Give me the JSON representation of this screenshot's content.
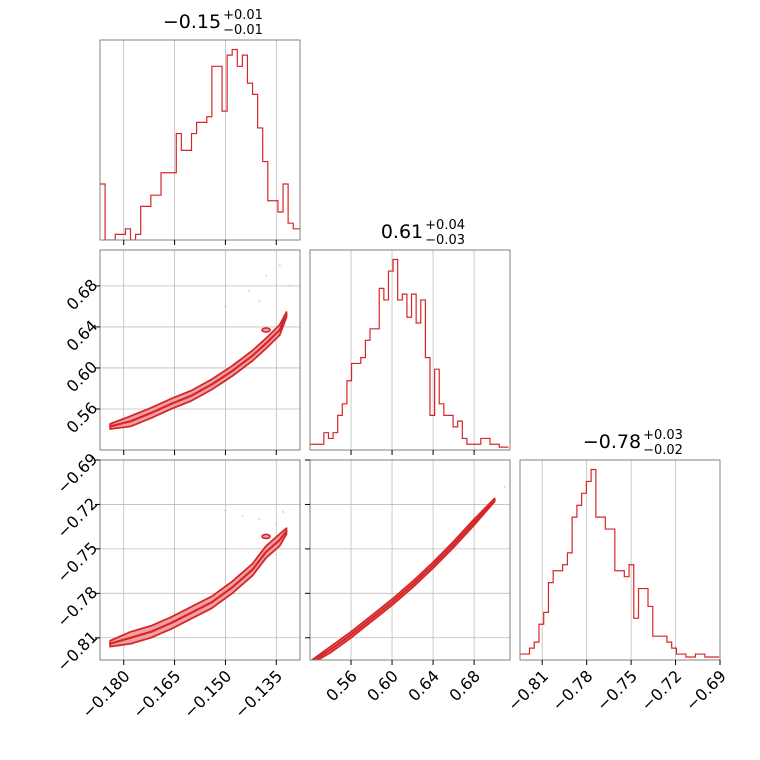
{
  "figure": {
    "type": "corner"
  },
  "chart_data": {
    "type": "corner",
    "color": "#d62728",
    "fill_color": "#f0a0a4",
    "grid": true,
    "parameters": [
      {
        "title": {
          "median": "−0.15",
          "upper": "+0.01",
          "lower": "−0.01"
        },
        "range": [
          -0.187,
          -0.128
        ],
        "ticks": [
          -0.18,
          -0.165,
          -0.15,
          -0.135
        ],
        "tick_labels": [
          "−0.180",
          "−0.165",
          "−0.150",
          "−0.135"
        ]
      },
      {
        "title": {
          "median": "0.61",
          "upper": "+0.04",
          "lower": "−0.03"
        },
        "range": [
          0.52,
          0.715
        ],
        "ticks": [
          0.56,
          0.6,
          0.64,
          0.68
        ],
        "tick_labels": [
          "0.56",
          "0.60",
          "0.64",
          "0.68"
        ]
      },
      {
        "title": {
          "median": "−0.78",
          "upper": "+0.03",
          "lower": "−0.02"
        },
        "range": [
          -0.825,
          -0.69
        ],
        "ticks": [
          -0.81,
          -0.78,
          -0.75,
          -0.72,
          -0.69
        ],
        "tick_labels": [
          "−0.81",
          "−0.78",
          "−0.75",
          "−0.72",
          "−0.69"
        ]
      }
    ],
    "histograms": [
      {
        "x": [
          -0.187,
          -0.1855,
          -0.184,
          -0.1825,
          -0.181,
          -0.1795,
          -0.178,
          -0.1765,
          -0.175,
          -0.1735,
          -0.172,
          -0.1705,
          -0.169,
          -0.1675,
          -0.166,
          -0.1645,
          -0.163,
          -0.1615,
          -0.16,
          -0.1585,
          -0.157,
          -0.1555,
          -0.154,
          -0.1525,
          -0.151,
          -0.1495,
          -0.148,
          -0.1465,
          -0.145,
          -0.1435,
          -0.142,
          -0.1405,
          -0.139,
          -0.1375,
          -0.136,
          -0.1345,
          -0.133,
          -0.1315,
          -0.13,
          -0.1285
        ],
        "counts": [
          1,
          0,
          0,
          0.1,
          0.1,
          0.2,
          0,
          0.1,
          0.6,
          0.6,
          0.8,
          0.8,
          1.2,
          1.2,
          1.2,
          1.9,
          1.6,
          1.6,
          1.9,
          2.1,
          2.1,
          2.2,
          3.1,
          3.1,
          2.3,
          3.3,
          3.4,
          3.1,
          3.3,
          2.8,
          2.6,
          2.0,
          1.4,
          0.7,
          0.7,
          0.5,
          1.0,
          0.3,
          0.2,
          0.2
        ]
      },
      {
        "x": [
          0.52,
          0.5245,
          0.529,
          0.5335,
          0.538,
          0.5425,
          0.547,
          0.5515,
          0.556,
          0.5605,
          0.565,
          0.5695,
          0.574,
          0.5785,
          0.583,
          0.5875,
          0.592,
          0.5965,
          0.601,
          0.6055,
          0.61,
          0.6145,
          0.619,
          0.6235,
          0.628,
          0.6325,
          0.637,
          0.6415,
          0.646,
          0.6505,
          0.655,
          0.6595,
          0.664,
          0.6685,
          0.673,
          0.6775,
          0.682,
          0.6865,
          0.691,
          0.6955,
          0.7,
          0.7045,
          0.709
        ],
        "counts": [
          0.1,
          0.1,
          0.1,
          0.3,
          0.2,
          0.3,
          0.6,
          0.8,
          1.2,
          1.5,
          1.5,
          1.6,
          1.9,
          2.1,
          2.1,
          2.8,
          2.6,
          3.1,
          3.3,
          2.6,
          2.7,
          2.3,
          2.7,
          2.2,
          2.6,
          1.6,
          0.6,
          1.4,
          0.8,
          0.6,
          0.6,
          0.4,
          0.5,
          0.2,
          0.1,
          0.1,
          0.1,
          0.2,
          0.2,
          0.1,
          0.1,
          0.05,
          0.05
        ]
      },
      {
        "x": [
          -0.825,
          -0.8218,
          -0.8186,
          -0.8154,
          -0.8122,
          -0.809,
          -0.8058,
          -0.8026,
          -0.7994,
          -0.7962,
          -0.793,
          -0.7898,
          -0.7866,
          -0.7834,
          -0.7802,
          -0.777,
          -0.7738,
          -0.7706,
          -0.7674,
          -0.7642,
          -0.761,
          -0.7578,
          -0.7546,
          -0.7514,
          -0.7482,
          -0.745,
          -0.7418,
          -0.7386,
          -0.7354,
          -0.7322,
          -0.729,
          -0.7258,
          -0.7226,
          -0.7194,
          -0.7162,
          -0.713,
          -0.7098,
          -0.7066,
          -0.7034,
          -0.7002,
          -0.697,
          -0.6938
        ],
        "counts": [
          0.1,
          0.1,
          0.2,
          0.3,
          0.6,
          0.8,
          1.3,
          1.5,
          1.5,
          1.6,
          1.8,
          2.4,
          2.6,
          2.8,
          3.0,
          3.2,
          2.4,
          2.4,
          2.2,
          2.2,
          1.5,
          1.5,
          1.4,
          1.6,
          0.7,
          1.2,
          1.2,
          0.9,
          0.4,
          0.4,
          0.4,
          0.3,
          0.2,
          0.1,
          0.1,
          0.05,
          0.05,
          0.1,
          0.1,
          0.05,
          0.05,
          0.05
        ]
      }
    ],
    "scatter_2d": [
      {
        "x_param": 0,
        "y_param": 1,
        "ridge_x": [
          -0.184,
          -0.178,
          -0.172,
          -0.166,
          -0.16,
          -0.154,
          -0.148,
          -0.142,
          -0.138,
          -0.134,
          -0.132
        ],
        "ridge_y": [
          0.543,
          0.548,
          0.556,
          0.565,
          0.573,
          0.584,
          0.597,
          0.612,
          0.624,
          0.637,
          0.652
        ],
        "ridge_width": 0.005,
        "outliers": [
          [
            -0.18,
            0.545
          ],
          [
            -0.14,
            0.665
          ],
          [
            -0.143,
            0.675
          ],
          [
            -0.138,
            0.69
          ],
          [
            -0.134,
            0.7
          ],
          [
            -0.15,
            0.66
          ],
          [
            -0.131,
            0.68
          ]
        ]
      },
      {
        "x_param": 0,
        "y_param": 2,
        "ridge_x": [
          -0.184,
          -0.178,
          -0.172,
          -0.166,
          -0.16,
          -0.154,
          -0.148,
          -0.142,
          -0.138,
          -0.134,
          -0.132
        ],
        "ridge_y": [
          -0.814,
          -0.81,
          -0.806,
          -0.8,
          -0.793,
          -0.786,
          -0.776,
          -0.764,
          -0.752,
          -0.744,
          -0.738
        ],
        "ridge_width": 0.004,
        "outliers": [
          [
            -0.145,
            -0.728
          ],
          [
            -0.14,
            -0.73
          ],
          [
            -0.135,
            -0.733
          ],
          [
            -0.15,
            -0.724
          ],
          [
            -0.133,
            -0.725
          ],
          [
            -0.18,
            -0.813
          ]
        ]
      },
      {
        "x_param": 1,
        "y_param": 2,
        "ridge_x": [
          0.52,
          0.54,
          0.56,
          0.58,
          0.6,
          0.62,
          0.64,
          0.66,
          0.68,
          0.7
        ],
        "ridge_y": [
          -0.827,
          -0.818,
          -0.808,
          -0.797,
          -0.786,
          -0.774,
          -0.761,
          -0.747,
          -0.732,
          -0.717
        ],
        "ridge_width": 0.002,
        "outliers": [
          [
            0.69,
            -0.725
          ],
          [
            0.7,
            -0.716
          ],
          [
            0.71,
            -0.708
          ],
          [
            0.53,
            -0.823
          ]
        ]
      }
    ]
  }
}
